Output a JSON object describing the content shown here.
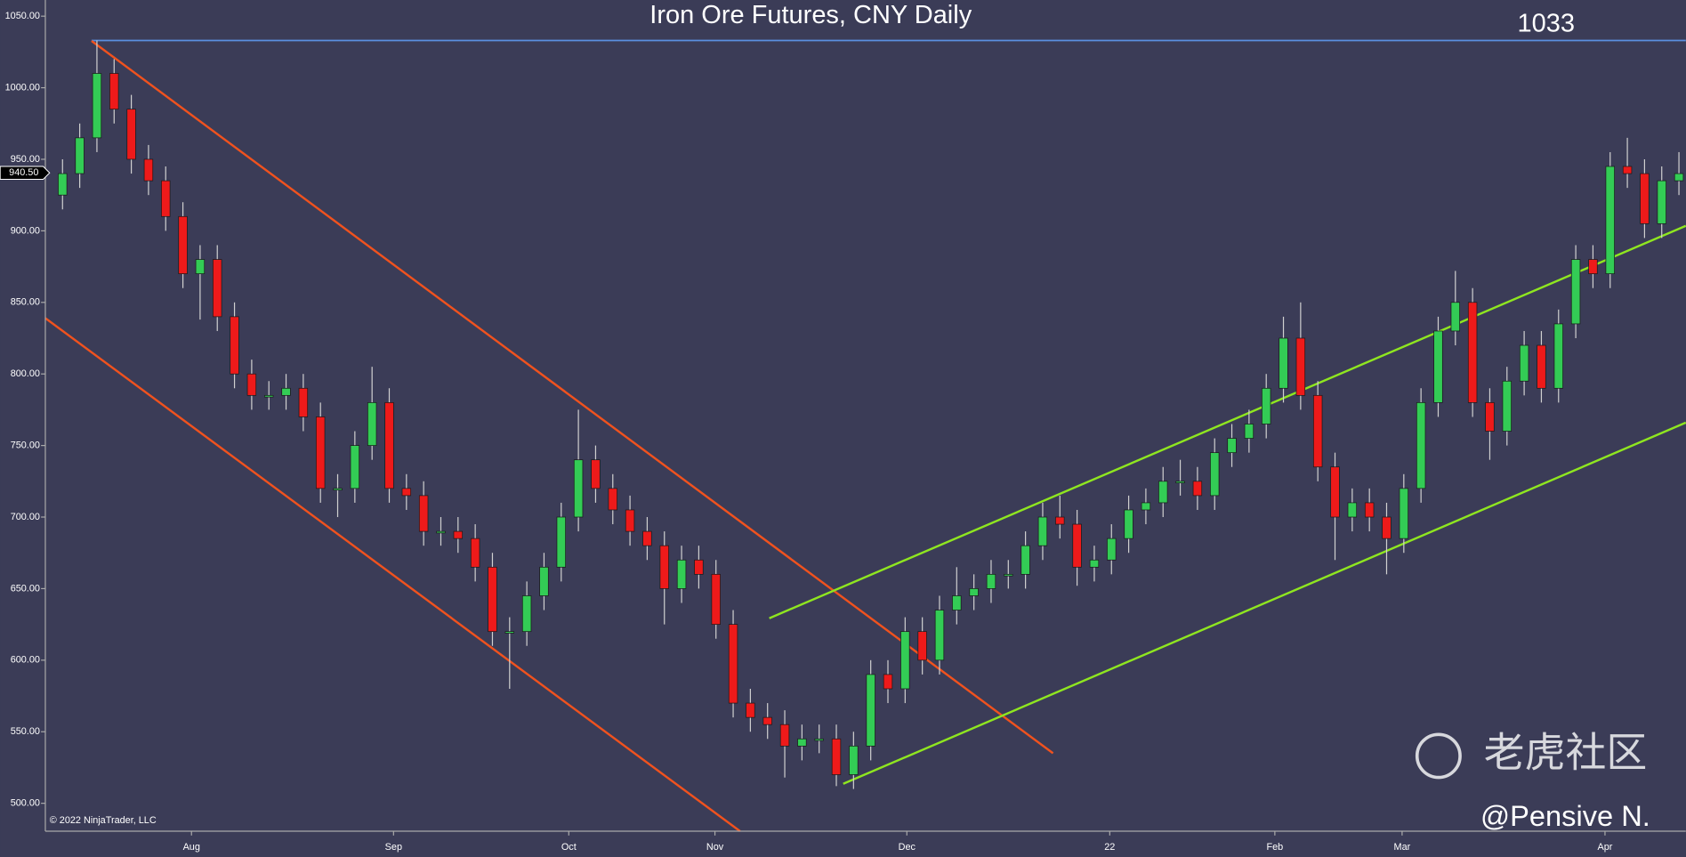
{
  "chart_data": {
    "type": "candlestick",
    "title": "Iron Ore Futures, CNY Daily",
    "copyright": "© 2022 NinjaTrader, LLC",
    "watermark": "老虎社区",
    "author": "@Pensive N.",
    "price_marker": {
      "value": 940.5,
      "label": "940.50"
    },
    "level": {
      "value": 1033,
      "label": "1033",
      "color": "#5b8fe0"
    },
    "up_color": "#33cc55",
    "down_color": "#ee1a1a",
    "xlim": [
      -1,
      94.4
    ],
    "xticks": [
      {
        "value": 7.5,
        "label": "Aug"
      },
      {
        "value": 19.25,
        "label": "Sep"
      },
      {
        "value": 29.44,
        "label": "Oct"
      },
      {
        "value": 37.94,
        "label": "Nov"
      },
      {
        "value": 49.1,
        "label": "Dec"
      },
      {
        "value": 60.9,
        "label": "22"
      },
      {
        "value": 70.5,
        "label": "Feb"
      },
      {
        "value": 77.9,
        "label": "Mar"
      },
      {
        "value": 89.7,
        "label": "Apr"
      }
    ],
    "ylim": [
      480.5,
      1061.3
    ],
    "yticks": [
      {
        "value": 500,
        "label": "500.00"
      },
      {
        "value": 550,
        "label": "550.00"
      },
      {
        "value": 600,
        "label": "600.00"
      },
      {
        "value": 650,
        "label": "650.00"
      },
      {
        "value": 700,
        "label": "700.00"
      },
      {
        "value": 750,
        "label": "750.00"
      },
      {
        "value": 800,
        "label": "800.00"
      },
      {
        "value": 850,
        "label": "850.00"
      },
      {
        "value": 900,
        "label": "900.00"
      },
      {
        "value": 950,
        "label": "950.00"
      },
      {
        "value": 1000,
        "label": "1000.00"
      },
      {
        "value": 1050,
        "label": "1050.00"
      }
    ],
    "open": [
      925,
      940,
      965,
      1010,
      985,
      950,
      935,
      910,
      870,
      880,
      840,
      800,
      785,
      785,
      790,
      770,
      720,
      720,
      750,
      780,
      720,
      715,
      690,
      690,
      685,
      665,
      620,
      620,
      645,
      665,
      700,
      740,
      720,
      705,
      690,
      680,
      650,
      670,
      660,
      625,
      570,
      560,
      555,
      540,
      545,
      545,
      520,
      540,
      590,
      580,
      620,
      600,
      635,
      645,
      650,
      660,
      660,
      680,
      700,
      695,
      665,
      670,
      685,
      705,
      710,
      725,
      725,
      715,
      745,
      755,
      765,
      790,
      825,
      785,
      735,
      700,
      710,
      700,
      685,
      720,
      780,
      830,
      850,
      780,
      760,
      795,
      820,
      790,
      835,
      880,
      870,
      945,
      940,
      905,
      935
    ],
    "high": [
      950,
      975,
      1033,
      1020,
      995,
      960,
      945,
      920,
      890,
      890,
      850,
      810,
      795,
      800,
      800,
      780,
      730,
      760,
      805,
      790,
      730,
      725,
      700,
      700,
      695,
      675,
      630,
      655,
      675,
      710,
      775,
      750,
      730,
      715,
      700,
      690,
      680,
      680,
      670,
      635,
      580,
      570,
      565,
      555,
      555,
      555,
      550,
      600,
      600,
      630,
      630,
      645,
      665,
      660,
      670,
      670,
      690,
      710,
      715,
      705,
      680,
      695,
      715,
      720,
      735,
      740,
      735,
      755,
      765,
      775,
      800,
      840,
      850,
      795,
      745,
      720,
      720,
      710,
      730,
      790,
      840,
      872,
      860,
      790,
      805,
      830,
      830,
      845,
      890,
      890,
      955,
      965,
      950,
      945,
      955
    ],
    "low": [
      915,
      930,
      955,
      975,
      940,
      925,
      900,
      860,
      838,
      830,
      790,
      775,
      775,
      775,
      760,
      710,
      700,
      710,
      740,
      710,
      705,
      680,
      680,
      675,
      655,
      610,
      580,
      610,
      635,
      655,
      690,
      710,
      695,
      680,
      670,
      625,
      640,
      650,
      615,
      560,
      550,
      545,
      518,
      530,
      535,
      512,
      510,
      530,
      570,
      570,
      590,
      590,
      625,
      635,
      640,
      650,
      650,
      670,
      685,
      652,
      655,
      660,
      675,
      695,
      700,
      715,
      705,
      705,
      735,
      745,
      755,
      780,
      775,
      725,
      670,
      690,
      690,
      660,
      675,
      710,
      770,
      820,
      770,
      740,
      750,
      785,
      780,
      780,
      825,
      860,
      860,
      930,
      895,
      895,
      925
    ],
    "close": [
      940,
      965,
      1010,
      985,
      950,
      935,
      910,
      870,
      880,
      840,
      800,
      785,
      785,
      790,
      770,
      720,
      720,
      750,
      780,
      720,
      715,
      690,
      690,
      685,
      665,
      620,
      620,
      645,
      665,
      700,
      740,
      720,
      705,
      690,
      680,
      650,
      670,
      660,
      625,
      570,
      560,
      555,
      540,
      545,
      545,
      520,
      540,
      590,
      580,
      620,
      600,
      635,
      645,
      650,
      660,
      660,
      680,
      700,
      695,
      665,
      670,
      685,
      705,
      710,
      725,
      725,
      715,
      745,
      755,
      765,
      790,
      825,
      785,
      735,
      700,
      710,
      700,
      685,
      720,
      780,
      830,
      850,
      780,
      760,
      795,
      820,
      790,
      835,
      880,
      870,
      945,
      940,
      905,
      935,
      940
    ],
    "lines": [
      {
        "color": "#f0521e",
        "x": [
          1.69,
          57.6
        ],
        "y": [
          1032.7,
          535
        ]
      },
      {
        "color": "#f0521e",
        "x": [
          -1,
          39.4
        ],
        "y": [
          839,
          480.5
        ]
      },
      {
        "color": "#8fe620",
        "x": [
          41.1,
          94.4
        ],
        "y": [
          629.3,
          903.5
        ]
      },
      {
        "color": "#8fe620",
        "x": [
          45.4,
          94.4
        ],
        "y": [
          513.6,
          766
        ]
      }
    ]
  }
}
